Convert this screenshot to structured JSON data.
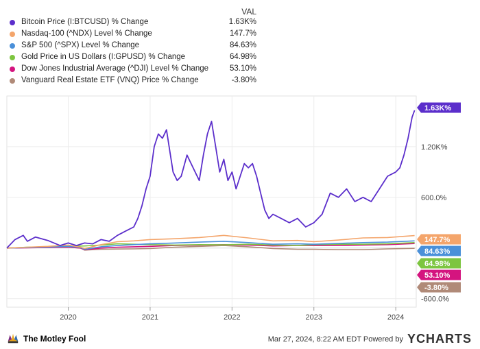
{
  "legend": {
    "value_header": "VAL",
    "items": [
      {
        "label": "Bitcoin Price (I:BTCUSD) % Change",
        "value": "1.63K%",
        "color": "#5b2ecb"
      },
      {
        "label": "Nasdaq-100 (^NDX) Level % Change",
        "value": "147.7%",
        "color": "#f4a56b"
      },
      {
        "label": "S&P 500 (^SPX) Level % Change",
        "value": "84.63%",
        "color": "#4a90d9"
      },
      {
        "label": "Gold Price in US Dollars (I:GPUSD) % Change",
        "value": "64.98%",
        "color": "#7dc540"
      },
      {
        "label": "Dow Jones Industrial Average (^DJI) Level % Change",
        "value": "53.10%",
        "color": "#d4147f"
      },
      {
        "label": "Vanguard Real Estate ETF (VNQ) Price % Change",
        "value": "-3.80%",
        "color": "#b08a78"
      }
    ]
  },
  "chart_data": {
    "type": "line",
    "xlabel": "",
    "ylabel": "",
    "x_ticks": [
      "2020",
      "2021",
      "2022",
      "2023",
      "2024"
    ],
    "y_ticks": [
      "1.20K%",
      "600.0%",
      "-600.0%"
    ],
    "ylim": [
      -700,
      1800
    ],
    "grid": true,
    "series": [
      {
        "name": "Bitcoin Price (I:BTCUSD) % Change",
        "color": "#5b2ecb",
        "end_label": "1.63K%",
        "x": [
          2019.25,
          2019.35,
          2019.45,
          2019.5,
          2019.6,
          2019.75,
          2019.9,
          2020.0,
          2020.1,
          2020.2,
          2020.3,
          2020.4,
          2020.5,
          2020.6,
          2020.7,
          2020.8,
          2020.85,
          2020.9,
          2020.95,
          2021.0,
          2021.05,
          2021.1,
          2021.15,
          2021.2,
          2021.28,
          2021.33,
          2021.38,
          2021.45,
          2021.5,
          2021.55,
          2021.6,
          2021.65,
          2021.7,
          2021.75,
          2021.8,
          2021.85,
          2021.9,
          2021.95,
          2022.0,
          2022.05,
          2022.1,
          2022.15,
          2022.2,
          2022.25,
          2022.3,
          2022.35,
          2022.4,
          2022.45,
          2022.5,
          2022.6,
          2022.7,
          2022.8,
          2022.9,
          2023.0,
          2023.1,
          2023.2,
          2023.3,
          2023.4,
          2023.5,
          2023.6,
          2023.7,
          2023.8,
          2023.9,
          2024.0,
          2024.05,
          2024.1,
          2024.15,
          2024.2,
          2024.23
        ],
        "values": [
          0,
          100,
          150,
          80,
          130,
          90,
          30,
          60,
          30,
          60,
          50,
          100,
          80,
          150,
          200,
          250,
          350,
          500,
          700,
          850,
          1200,
          1350,
          1300,
          1400,
          900,
          800,
          850,
          1100,
          1000,
          900,
          800,
          1100,
          1350,
          1500,
          1200,
          900,
          1050,
          800,
          900,
          700,
          850,
          1000,
          950,
          1000,
          850,
          650,
          450,
          350,
          400,
          350,
          300,
          350,
          250,
          300,
          400,
          650,
          600,
          700,
          550,
          600,
          550,
          700,
          850,
          900,
          950,
          1100,
          1300,
          1550,
          1630
        ]
      },
      {
        "name": "Nasdaq-100 (^NDX) Level % Change",
        "color": "#f4a56b",
        "end_label": "147.7%",
        "x": [
          2019.25,
          2019.5,
          2019.75,
          2020.0,
          2020.15,
          2020.2,
          2020.4,
          2020.6,
          2020.8,
          2021.0,
          2021.3,
          2021.6,
          2021.9,
          2022.2,
          2022.5,
          2022.8,
          2023.0,
          2023.3,
          2023.6,
          2023.9,
          2024.23
        ],
        "values": [
          0,
          10,
          20,
          35,
          10,
          -5,
          40,
          75,
          85,
          100,
          110,
          125,
          150,
          120,
          85,
          90,
          75,
          95,
          120,
          125,
          147.7
        ]
      },
      {
        "name": "S&P 500 (^SPX) Level % Change",
        "color": "#4a90d9",
        "end_label": "84.63%",
        "x": [
          2019.25,
          2019.5,
          2019.75,
          2020.0,
          2020.15,
          2020.2,
          2020.4,
          2020.6,
          2020.8,
          2021.0,
          2021.3,
          2021.6,
          2021.9,
          2022.2,
          2022.5,
          2022.8,
          2023.0,
          2023.3,
          2023.6,
          2023.9,
          2024.23
        ],
        "values": [
          0,
          5,
          12,
          20,
          5,
          -15,
          15,
          30,
          40,
          50,
          60,
          70,
          80,
          65,
          45,
          50,
          45,
          55,
          65,
          70,
          84.63
        ]
      },
      {
        "name": "Gold Price in US Dollars (I:GPUSD) % Change",
        "color": "#7dc540",
        "end_label": "64.98%",
        "x": [
          2019.25,
          2019.5,
          2019.75,
          2020.0,
          2020.2,
          2020.4,
          2020.6,
          2020.8,
          2021.0,
          2021.3,
          2021.6,
          2021.9,
          2022.2,
          2022.5,
          2022.8,
          2023.0,
          2023.3,
          2023.6,
          2023.9,
          2024.23
        ],
        "values": [
          0,
          10,
          15,
          20,
          25,
          35,
          50,
          45,
          40,
          35,
          40,
          38,
          45,
          35,
          30,
          40,
          45,
          45,
          50,
          64.98
        ]
      },
      {
        "name": "Dow Jones Industrial Average (^DJI) Level % Change",
        "color": "#d4147f",
        "end_label": "53.10%",
        "x": [
          2019.25,
          2019.5,
          2019.75,
          2020.0,
          2020.15,
          2020.2,
          2020.4,
          2020.6,
          2020.8,
          2021.0,
          2021.3,
          2021.6,
          2021.9,
          2022.2,
          2022.5,
          2022.8,
          2023.0,
          2023.3,
          2023.6,
          2023.9,
          2024.23
        ],
        "values": [
          0,
          3,
          6,
          10,
          0,
          -20,
          0,
          10,
          15,
          20,
          30,
          35,
          40,
          35,
          25,
          30,
          30,
          30,
          35,
          40,
          53.1
        ]
      },
      {
        "name": "Vanguard Real Estate ETF (VNQ) Price % Change",
        "color": "#b08a78",
        "end_label": "-3.80%",
        "x": [
          2019.25,
          2019.5,
          2019.75,
          2020.0,
          2020.15,
          2020.2,
          2020.4,
          2020.6,
          2020.8,
          2021.0,
          2021.3,
          2021.6,
          2021.9,
          2022.2,
          2022.5,
          2022.8,
          2023.0,
          2023.3,
          2023.6,
          2023.9,
          2024.23
        ],
        "values": [
          0,
          5,
          8,
          10,
          0,
          -25,
          -15,
          -12,
          -10,
          -5,
          10,
          20,
          30,
          15,
          -5,
          -15,
          -15,
          -20,
          -20,
          -10,
          -3.8
        ]
      }
    ]
  },
  "footer": {
    "brand": "The Motley Fool",
    "timestamp": "Mar 27, 2024, 8:22 AM EDT  Powered by",
    "provider": "YCHARTS"
  }
}
